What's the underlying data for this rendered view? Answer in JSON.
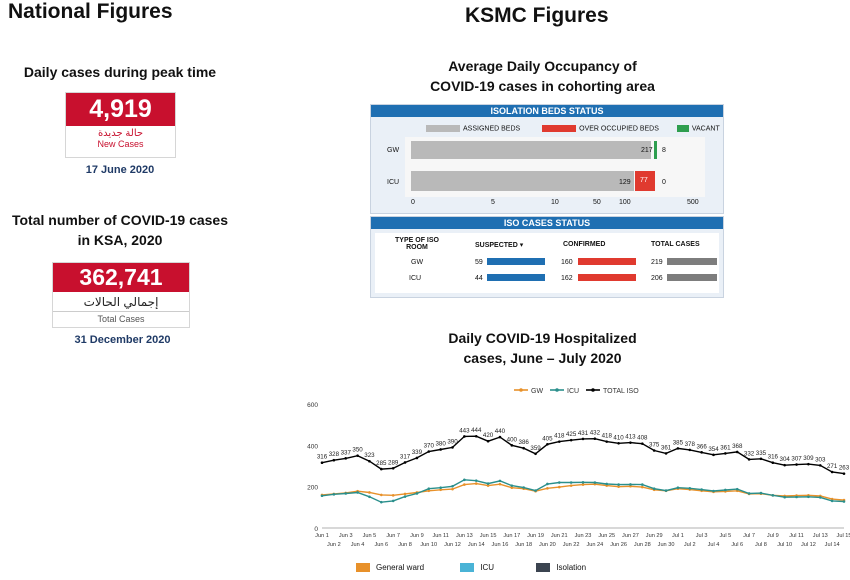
{
  "left": {
    "heading": "National Figures",
    "peak_label": "Daily cases during peak time",
    "peak_value": "4,919",
    "peak_arabic": "حالة جديدة",
    "peak_english": "New Cases",
    "peak_date": "17 June 2020",
    "total_label_1": "Total number of COVID-19 cases",
    "total_label_2": "in KSA, 2020",
    "total_value": "362,741",
    "total_arabic": "إجمالي الحالات",
    "total_english": "Total Cases",
    "total_date": "31 December 2020"
  },
  "right": {
    "heading": "KSMC Figures",
    "occupancy_title_1": "Average Daily Occupancy of",
    "occupancy_title_2": "COVID-19 cases in cohorting area",
    "iso_status_title": "ISOLATION BEDS STATUS",
    "legend_assigned": "ASSIGNED BEDS",
    "legend_over": "OVER OCCUPIED BEDS",
    "legend_vacant": "VACANT",
    "gw_label": "GW",
    "icu_label": "ICU",
    "gw_assigned": "217",
    "gw_vacant": "8",
    "icu_assigned": "129",
    "icu_over": "77",
    "icu_vacant": "0",
    "axis_ticks": [
      "0",
      "5",
      "10",
      "50",
      "100",
      "500"
    ],
    "iso_cases_title": "ISO CASES STATUS",
    "col_type_1": "TYPE OF ISO",
    "col_type_2": "ROOM",
    "col_suspected": "SUSPECTED",
    "col_confirmed": "CONFIRMED",
    "col_total": "TOTAL CASES",
    "rows": [
      {
        "room": "GW",
        "suspected": "59",
        "confirmed": "160",
        "total": "219"
      },
      {
        "room": "ICU",
        "suspected": "44",
        "confirmed": "162",
        "total": "206"
      }
    ],
    "hosp_title_1": "Daily COVID-19 Hospitalized",
    "hosp_title_2": "cases, June – July 2020"
  },
  "colors": {
    "gw": "#e8912a",
    "icu": "#2a8f8c",
    "total": "#000000",
    "red": "#c8102e",
    "bar_blue": "#1f6fb2",
    "bar_red": "#e03a2f",
    "bar_gray": "#7d7d7d",
    "legend_icu": "#4ab3d6",
    "legend_iso": "#3b4450"
  },
  "chart_data": {
    "type": "line",
    "series_legend": [
      "GW",
      "ICU",
      "TOTAL ISO"
    ],
    "ylim": [
      0,
      600
    ],
    "yticks": [
      "600",
      "400",
      "200",
      "0"
    ],
    "x_top": [
      "Jun 1",
      "Jun 3",
      "Jun 5",
      "Jun 7",
      "Jun 9",
      "Jun 11",
      "Jun 13",
      "Jun 15",
      "Jun 17",
      "Jun 19",
      "Jun 21",
      "Jun 23",
      "Jun 25",
      "Jun 27",
      "Jun 29",
      "Jul 1",
      "Jul 3",
      "Jul 5",
      "Jul 7",
      "Jul 9",
      "Jul 11",
      "Jul 13",
      "Jul 15"
    ],
    "x_bottom": [
      "Jun 2",
      "Jun 4",
      "Jun 6",
      "Jun 8",
      "Jun 10",
      "Jun 12",
      "Jun 14",
      "Jun 16",
      "Jun 18",
      "Jun 20",
      "Jun 22",
      "Jun 24",
      "Jun 26",
      "Jun 28",
      "Jun 30",
      "Jul 2",
      "Jul 4",
      "Jul 6",
      "Jul 8",
      "Jul 10",
      "Jul 12",
      "Jul 14"
    ],
    "total_iso": [
      316,
      328,
      337,
      350,
      323,
      285,
      289,
      317,
      339,
      370,
      380,
      390,
      443,
      444,
      420,
      440,
      400,
      386,
      359,
      405,
      418,
      425,
      431,
      432,
      418,
      410,
      413,
      408,
      375,
      361,
      385,
      378,
      366,
      354,
      361,
      368,
      332,
      335,
      316,
      304,
      307,
      309,
      303,
      271,
      263
    ],
    "gw": [
      160,
      165,
      170,
      178,
      172,
      160,
      158,
      165,
      172,
      180,
      185,
      188,
      210,
      215,
      205,
      212,
      195,
      190,
      178,
      192,
      198,
      205,
      210,
      212,
      205,
      200,
      202,
      198,
      185,
      180,
      190,
      186,
      180,
      175,
      177,
      180,
      165,
      166,
      158,
      155,
      157,
      158,
      155,
      140,
      135
    ],
    "icu": [
      156,
      163,
      167,
      172,
      151,
      125,
      131,
      152,
      167,
      190,
      195,
      202,
      233,
      229,
      215,
      228,
      205,
      196,
      181,
      213,
      220,
      220,
      221,
      220,
      213,
      210,
      211,
      210,
      190,
      181,
      195,
      192,
      186,
      179,
      184,
      188,
      167,
      169,
      158,
      149,
      150,
      151,
      148,
      131,
      128
    ],
    "bottom_legend": [
      "General ward",
      "ICU",
      "Isolation"
    ]
  }
}
